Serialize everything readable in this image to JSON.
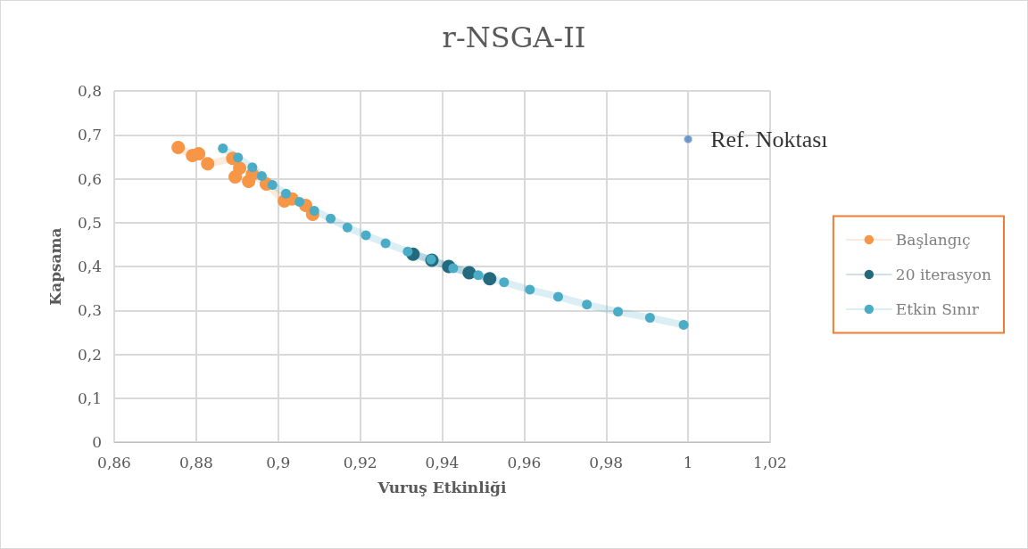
{
  "chart_data": {
    "type": "line",
    "title": "r-NSGA-II",
    "xlabel": "Vuruş Etkinliği",
    "ylabel": "Kapsama",
    "xlim": [
      0.86,
      1.02
    ],
    "xticks": [
      {
        "value": 0.86,
        "label": "0,86"
      },
      {
        "value": 0.88,
        "label": "0,88"
      },
      {
        "value": 0.9,
        "label": "0,9"
      },
      {
        "value": 0.92,
        "label": "0,92"
      },
      {
        "value": 0.94,
        "label": "0,94"
      },
      {
        "value": 0.96,
        "label": "0,96"
      },
      {
        "value": 0.98,
        "label": "0,98"
      },
      {
        "value": 1,
        "label": "1"
      },
      {
        "value": 1.02,
        "label": "1,02"
      }
    ],
    "ylim": [
      0,
      0.8
    ],
    "yticks": [
      {
        "value": 0,
        "label": "0"
      },
      {
        "value": 0.1,
        "label": "0,1"
      },
      {
        "value": 0.2,
        "label": "0,2"
      },
      {
        "value": 0.3,
        "label": "0,3"
      },
      {
        "value": 0.4,
        "label": "0,4"
      },
      {
        "value": 0.5,
        "label": "0,5"
      },
      {
        "value": 0.6,
        "label": "0,6"
      },
      {
        "value": 0.7,
        "label": "0,7"
      },
      {
        "value": 0.8,
        "label": "0,8"
      }
    ],
    "grid": true,
    "legend": "right",
    "marker": "circle",
    "series": [
      {
        "name": "Başlangıç",
        "color": "#f79646",
        "x": [
          0.8756,
          0.8791,
          0.8806,
          0.8828,
          0.8889,
          0.8906,
          0.8895,
          0.8928,
          0.8937,
          0.8971,
          0.9015,
          0.9034,
          0.9067,
          0.9084
        ],
        "values": [
          0.671,
          0.653,
          0.657,
          0.634,
          0.646,
          0.624,
          0.604,
          0.594,
          0.61,
          0.588,
          0.549,
          0.554,
          0.539,
          0.519
        ]
      },
      {
        "name": "20 iterasyon",
        "color": "#236a7e",
        "x": [
          0.9329,
          0.9375,
          0.9416,
          0.9466,
          0.9516
        ],
        "values": [
          0.428,
          0.414,
          0.4,
          0.386,
          0.372
        ]
      },
      {
        "name": "Etkin Sınır",
        "color": "#4bacc6",
        "x": [
          0.8865,
          0.8902,
          0.8937,
          0.896,
          0.8986,
          0.9019,
          0.9052,
          0.9088,
          0.9128,
          0.9169,
          0.9214,
          0.9262,
          0.9316,
          0.9373,
          0.9427,
          0.9488,
          0.9551,
          0.9614,
          0.9683,
          0.9753,
          0.9829,
          0.9907,
          0.9989
        ],
        "values": [
          0.669,
          0.648,
          0.626,
          0.606,
          0.586,
          0.566,
          0.547,
          0.527,
          0.509,
          0.489,
          0.471,
          0.453,
          0.434,
          0.416,
          0.396,
          0.38,
          0.364,
          0.347,
          0.331,
          0.313,
          0.297,
          0.283,
          0.267
        ]
      },
      {
        "name": "Ref. Noktası",
        "type": "scatter",
        "color": "#4f81bd",
        "x": [
          1.0
        ],
        "values": [
          0.69
        ]
      }
    ]
  }
}
